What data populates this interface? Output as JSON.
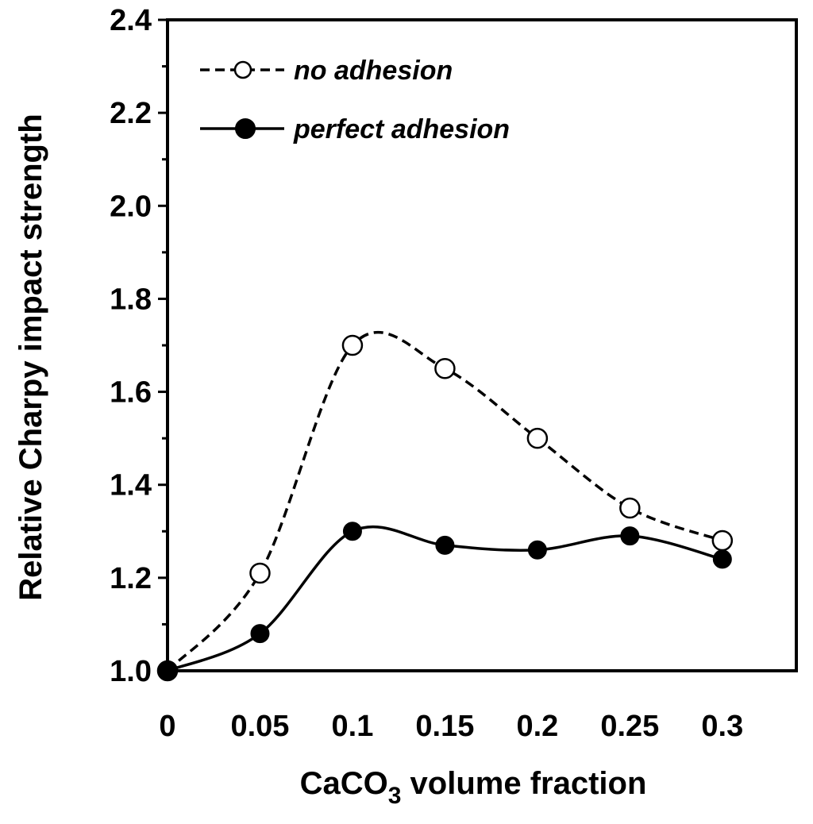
{
  "chart_data": {
    "type": "line",
    "title": "",
    "xlabel": "CaCO3 volume fraction",
    "xlabel_parts": {
      "main": "CaCO",
      "sub": "3",
      "rest": " volume fraction"
    },
    "ylabel": "Relative Charpy impact strength",
    "x": [
      0,
      0.05,
      0.1,
      0.15,
      0.2,
      0.25,
      0.3
    ],
    "x_tick_labels": [
      "0",
      "0.05",
      "0.1",
      "0.15",
      "0.2",
      "0.25",
      "0.3"
    ],
    "y_ticks": [
      1.0,
      1.2,
      1.4,
      1.6,
      1.8,
      2.0,
      2.2,
      2.4
    ],
    "y_tick_labels": [
      "1.0",
      "1.2",
      "1.4",
      "1.6",
      "1.8",
      "2.0",
      "2.2",
      "2.4"
    ],
    "xlim": [
      0,
      0.34
    ],
    "ylim": [
      1.0,
      2.4
    ],
    "grid": false,
    "legend_position": "top-left",
    "series": [
      {
        "name": "no adhesion",
        "line": "dashed",
        "marker": "open-circle",
        "values": [
          1.0,
          1.21,
          1.7,
          1.65,
          1.5,
          1.35,
          1.28
        ]
      },
      {
        "name": "perfect adhesion",
        "line": "solid",
        "marker": "filled-circle",
        "values": [
          1.0,
          1.08,
          1.3,
          1.27,
          1.26,
          1.29,
          1.24
        ]
      }
    ]
  },
  "colors": {
    "axis": "#000000",
    "line": "#000000",
    "background": "#ffffff"
  }
}
